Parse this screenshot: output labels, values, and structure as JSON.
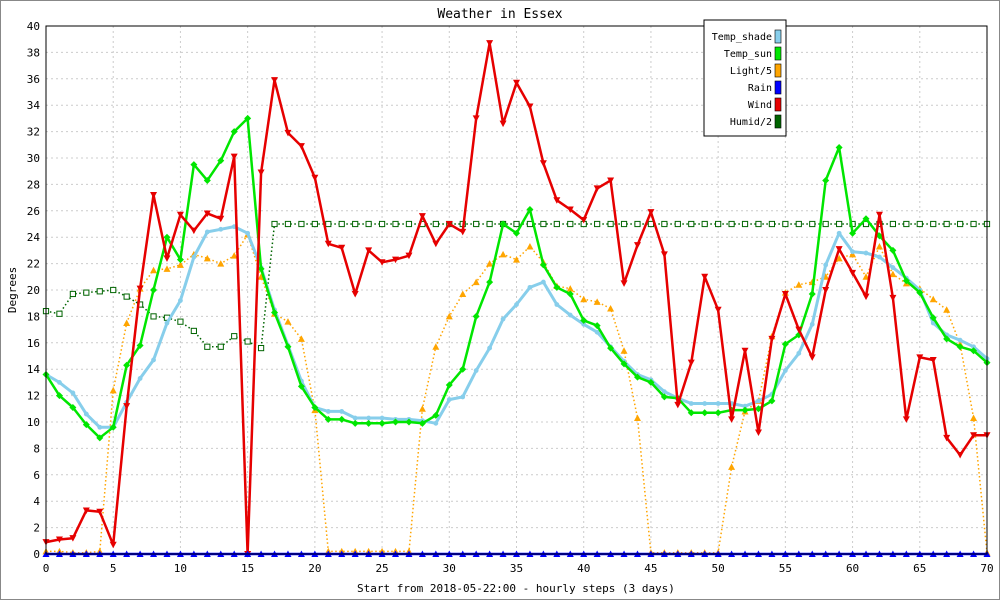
{
  "chart_data": {
    "type": "line",
    "title": "Weather in Essex",
    "xlabel": "Start from 2018-05-22:00 - hourly steps (3 days)",
    "ylabel": "Degrees",
    "xlim": [
      0,
      70
    ],
    "ylim": [
      0,
      40
    ],
    "xticks": [
      0,
      5,
      10,
      15,
      20,
      25,
      30,
      35,
      40,
      45,
      50,
      55,
      60,
      65,
      70
    ],
    "yticks": [
      0,
      2,
      4,
      6,
      8,
      10,
      12,
      14,
      16,
      18,
      20,
      22,
      24,
      26,
      28,
      30,
      32,
      34,
      36,
      38,
      40
    ],
    "grid": true,
    "legend_position": "top-right",
    "series": [
      {
        "name": "Temp_shade",
        "color": "#87ceeb",
        "line": "solid",
        "marker": "circle",
        "x": [
          0,
          1,
          2,
          3,
          4,
          5,
          6,
          7,
          8,
          9,
          10,
          11,
          12,
          13,
          14,
          15,
          16,
          17,
          18,
          19,
          20,
          21,
          22,
          23,
          24,
          25,
          26,
          27,
          28,
          29,
          30,
          31,
          32,
          33,
          34,
          35,
          36,
          37,
          38,
          39,
          40,
          41,
          42,
          43,
          44,
          45,
          46,
          47,
          48,
          49,
          50,
          51,
          52,
          53,
          54,
          55,
          56,
          57,
          58,
          59,
          60,
          61,
          62,
          63,
          64,
          65,
          66,
          67,
          68,
          69,
          70
        ],
        "values": [
          13.6,
          13.0,
          12.2,
          10.6,
          9.6,
          9.6,
          11.5,
          13.3,
          14.7,
          17.5,
          19.2,
          22.5,
          24.4,
          24.6,
          24.8,
          24.3,
          21.7,
          18.5,
          15.8,
          13.1,
          11.1,
          10.8,
          10.8,
          10.3,
          10.3,
          10.3,
          10.2,
          10.2,
          10.1,
          9.9,
          11.7,
          11.9,
          13.9,
          15.6,
          17.8,
          18.9,
          20.2,
          20.6,
          18.9,
          18.1,
          17.4,
          16.8,
          15.7,
          14.6,
          13.6,
          13.2,
          12.3,
          11.8,
          11.4,
          11.4,
          11.4,
          11.4,
          11.2,
          11.6,
          12.1,
          13.9,
          15.2,
          17.4,
          21.9,
          24.3,
          22.9,
          22.8,
          22.5,
          21.7,
          20.9,
          20.0,
          17.5,
          16.6,
          16.2,
          15.7,
          14.8
        ]
      },
      {
        "name": "Temp_sun",
        "color": "#00e600",
        "line": "solid",
        "marker": "diamond",
        "x": [
          0,
          1,
          2,
          3,
          4,
          5,
          6,
          7,
          8,
          9,
          10,
          11,
          12,
          13,
          14,
          15,
          16,
          17,
          18,
          19,
          20,
          21,
          22,
          23,
          24,
          25,
          26,
          27,
          28,
          29,
          30,
          31,
          32,
          33,
          34,
          35,
          36,
          37,
          38,
          39,
          40,
          41,
          42,
          43,
          44,
          45,
          46,
          47,
          48,
          49,
          50,
          51,
          52,
          53,
          54,
          55,
          56,
          57,
          58,
          59,
          60,
          61,
          62,
          63,
          64,
          65,
          66,
          67,
          68,
          69,
          70
        ],
        "values": [
          13.6,
          12.0,
          11.1,
          9.8,
          8.8,
          9.6,
          14.3,
          15.8,
          20.0,
          24.0,
          22.3,
          29.5,
          28.3,
          29.8,
          32.0,
          33.0,
          21.6,
          18.3,
          15.7,
          12.7,
          11.1,
          10.2,
          10.2,
          9.9,
          9.9,
          9.9,
          10.0,
          10.0,
          9.9,
          10.5,
          12.8,
          14.0,
          18.0,
          20.6,
          25.0,
          24.3,
          26.1,
          21.9,
          20.2,
          19.7,
          17.7,
          17.3,
          15.6,
          14.4,
          13.4,
          13.0,
          11.9,
          11.8,
          10.7,
          10.7,
          10.7,
          10.9,
          10.9,
          11.0,
          11.6,
          15.9,
          16.6,
          19.7,
          28.3,
          30.8,
          24.3,
          25.4,
          24.1,
          23.0,
          20.7,
          19.8,
          17.9,
          16.3,
          15.7,
          15.4,
          14.5
        ]
      },
      {
        "name": "Light/5",
        "color": "#ffa500",
        "line": "dotted",
        "marker": "triangle",
        "x": [
          0,
          1,
          2,
          3,
          4,
          5,
          6,
          7,
          8,
          9,
          10,
          11,
          12,
          13,
          14,
          15,
          16,
          17,
          18,
          19,
          20,
          21,
          22,
          23,
          24,
          25,
          26,
          27,
          28,
          29,
          30,
          31,
          32,
          33,
          34,
          35,
          36,
          37,
          38,
          39,
          40,
          41,
          42,
          43,
          44,
          45,
          46,
          47,
          48,
          49,
          50,
          51,
          52,
          53,
          54,
          55,
          56,
          57,
          58,
          59,
          60,
          61,
          62,
          63,
          64,
          65,
          66,
          67,
          68,
          69,
          70
        ],
        "values": [
          0.2,
          0.2,
          0.1,
          0.1,
          0.2,
          12.4,
          17.5,
          20.1,
          21.5,
          21.6,
          21.9,
          22.7,
          22.4,
          22.0,
          22.6,
          24.2,
          21.0,
          18.2,
          17.6,
          16.3,
          10.9,
          0.2,
          0.2,
          0.2,
          0.2,
          0.2,
          0.2,
          0.2,
          11.0,
          15.7,
          18.0,
          19.7,
          20.6,
          22.0,
          22.7,
          22.3,
          23.3,
          22.1,
          20.3,
          20.1,
          19.3,
          19.1,
          18.6,
          15.4,
          10.3,
          0.1,
          0.1,
          0.1,
          0.1,
          0.1,
          0.1,
          6.6,
          10.8,
          11.6,
          16.5,
          19.8,
          20.4,
          20.6,
          21.0,
          22.4,
          22.7,
          21.0,
          23.3,
          21.2,
          20.5,
          20.1,
          19.3,
          18.5,
          15.9,
          10.3,
          0.1
        ]
      },
      {
        "name": "Rain",
        "color": "#0000ff",
        "line": "solid",
        "marker": "triangle",
        "x": [
          0,
          1,
          2,
          3,
          4,
          5,
          6,
          7,
          8,
          9,
          10,
          11,
          12,
          13,
          14,
          15,
          16,
          17,
          18,
          19,
          20,
          21,
          22,
          23,
          24,
          25,
          26,
          27,
          28,
          29,
          30,
          31,
          32,
          33,
          34,
          35,
          36,
          37,
          38,
          39,
          40,
          41,
          42,
          43,
          44,
          45,
          46,
          47,
          48,
          49,
          50,
          51,
          52,
          53,
          54,
          55,
          56,
          57,
          58,
          59,
          60,
          61,
          62,
          63,
          64,
          65,
          66,
          67,
          68,
          69,
          70
        ],
        "values": [
          0,
          0,
          0,
          0,
          0,
          0,
          0,
          0,
          0,
          0,
          0,
          0,
          0,
          0,
          0,
          0,
          0,
          0,
          0,
          0,
          0,
          0,
          0,
          0,
          0,
          0,
          0,
          0,
          0,
          0,
          0,
          0,
          0,
          0,
          0,
          0,
          0,
          0,
          0,
          0,
          0,
          0,
          0,
          0,
          0,
          0,
          0,
          0,
          0,
          0,
          0,
          0,
          0,
          0,
          0,
          0,
          0,
          0,
          0,
          0,
          0,
          0,
          0,
          0,
          0,
          0,
          0,
          0,
          0,
          0,
          0
        ]
      },
      {
        "name": "Wind",
        "color": "#e60000",
        "line": "solid",
        "marker": "triangle-down",
        "x": [
          0,
          1,
          2,
          3,
          4,
          5,
          6,
          7,
          8,
          9,
          10,
          11,
          12,
          13,
          14,
          15,
          16,
          17,
          18,
          19,
          20,
          21,
          22,
          23,
          24,
          25,
          26,
          27,
          28,
          29,
          30,
          31,
          32,
          33,
          34,
          35,
          36,
          37,
          38,
          39,
          40,
          41,
          42,
          43,
          44,
          45,
          46,
          47,
          48,
          49,
          50,
          51,
          52,
          53,
          54,
          55,
          56,
          57,
          58,
          59,
          60,
          61,
          62,
          63,
          64,
          65,
          66,
          67,
          68,
          69,
          70
        ],
        "values": [
          0.9,
          1.1,
          1.2,
          3.3,
          3.2,
          0.7,
          11.2,
          20.1,
          27.2,
          22.4,
          25.7,
          24.5,
          25.8,
          25.4,
          30.1,
          0.0,
          28.9,
          35.9,
          31.9,
          30.9,
          28.5,
          23.5,
          23.2,
          19.7,
          23.0,
          22.1,
          22.3,
          22.6,
          25.6,
          23.5,
          25.0,
          24.4,
          33.0,
          38.7,
          32.6,
          35.7,
          33.9,
          29.6,
          26.8,
          26.1,
          25.3,
          27.7,
          28.3,
          20.5,
          23.4,
          25.9,
          22.7,
          11.3,
          14.5,
          21.0,
          18.5,
          10.2,
          15.4,
          9.2,
          16.3,
          19.7,
          17.0,
          14.9,
          20.0,
          23.1,
          21.3,
          19.5,
          25.7,
          19.4,
          10.2,
          14.9,
          14.7,
          8.8,
          7.5,
          9.0,
          9.0
        ]
      },
      {
        "name": "Humid/2",
        "color": "#006400",
        "line": "dotted",
        "marker": "square",
        "x": [
          0,
          1,
          2,
          3,
          4,
          5,
          6,
          7,
          8,
          9,
          10,
          11,
          12,
          13,
          14,
          15,
          16,
          17,
          18,
          19,
          20,
          21,
          22,
          23,
          24,
          25,
          26,
          27,
          28,
          29,
          30,
          31,
          32,
          33,
          34,
          35,
          36,
          37,
          38,
          39,
          40,
          41,
          42,
          43,
          44,
          45,
          46,
          47,
          48,
          49,
          50,
          51,
          52,
          53,
          54,
          55,
          56,
          57,
          58,
          59,
          60,
          61,
          62,
          63,
          64,
          65,
          66,
          67,
          68,
          69,
          70
        ],
        "values": [
          18.4,
          18.2,
          19.7,
          19.8,
          19.9,
          20.0,
          19.5,
          18.9,
          18.0,
          17.9,
          17.6,
          16.9,
          15.7,
          15.7,
          16.5,
          16.1,
          15.6,
          25.0,
          25.0,
          25.0,
          25.0,
          25.0,
          25.0,
          25.0,
          25.0,
          25.0,
          25.0,
          25.0,
          25.0,
          25.0,
          25.0,
          25.0,
          25.0,
          25.0,
          25.0,
          25.0,
          25.0,
          25.0,
          25.0,
          25.0,
          25.0,
          25.0,
          25.0,
          25.0,
          25.0,
          25.0,
          25.0,
          25.0,
          25.0,
          25.0,
          25.0,
          25.0,
          25.0,
          25.0,
          25.0,
          25.0,
          25.0,
          25.0,
          25.0,
          25.0,
          25.0,
          25.0,
          25.0,
          25.0,
          25.0,
          25.0,
          25.0,
          25.0,
          25.0,
          25.0,
          25.0
        ]
      }
    ]
  }
}
